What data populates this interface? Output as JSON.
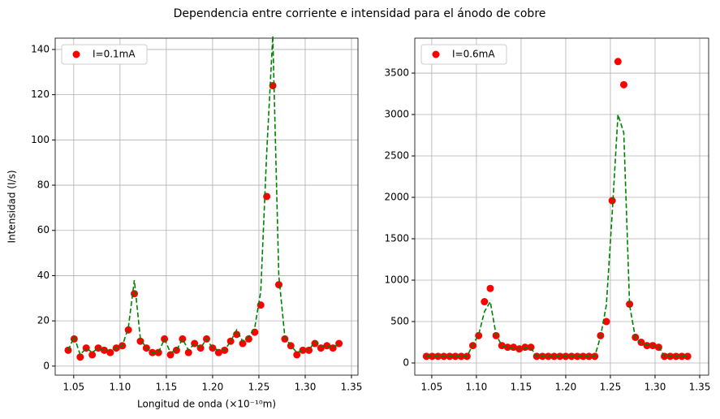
{
  "title": "Dependencia entre corriente e intensidad para el ánodo de cobre",
  "chart_data": [
    {
      "type": "scatter-line",
      "xlabel": "Longitud de onda (×10⁻¹⁰m)",
      "ylabel": "Intensidad (I/s)",
      "x": [
        1.044,
        1.0505,
        1.057,
        1.0635,
        1.07,
        1.0765,
        1.083,
        1.0895,
        1.096,
        1.1025,
        1.109,
        1.1155,
        1.122,
        1.1285,
        1.135,
        1.1415,
        1.148,
        1.1545,
        1.161,
        1.1675,
        1.174,
        1.1805,
        1.187,
        1.1935,
        1.2,
        1.2065,
        1.213,
        1.2195,
        1.226,
        1.2325,
        1.239,
        1.2455,
        1.252,
        1.2585,
        1.265,
        1.2715,
        1.278,
        1.2845,
        1.291,
        1.2975,
        1.304,
        1.3105,
        1.317,
        1.3235,
        1.33,
        1.3365
      ],
      "series": [
        {
          "name": "I=0.1mA",
          "color": "#ff0000",
          "style": "points",
          "values": [
            7,
            12,
            4,
            8,
            5,
            8,
            7,
            6,
            8,
            9,
            16,
            32,
            11,
            8,
            6,
            6,
            12,
            5,
            7,
            12,
            6,
            10,
            8,
            12,
            8,
            6,
            7,
            11,
            14,
            10,
            12,
            15,
            27,
            75,
            124,
            36,
            12,
            9,
            5,
            7,
            7,
            10,
            8,
            9,
            8,
            10
          ]
        },
        {
          "color": "#008000",
          "style": "dashed",
          "values": [
            7,
            13,
            5,
            8,
            6,
            8,
            7,
            7,
            8,
            9,
            17,
            38,
            12,
            8,
            6,
            6,
            12,
            6,
            7,
            12,
            7,
            10,
            8,
            12,
            8,
            7,
            7,
            11,
            16,
            11,
            13,
            17,
            33,
            95,
            146,
            40,
            13,
            9,
            6,
            7,
            7,
            11,
            9,
            9,
            8,
            10
          ]
        }
      ],
      "xlim": [
        1.03,
        1.357
      ],
      "ylim": [
        -4,
        145
      ],
      "xticks": [
        1.05,
        {
          "value": 1.1,
          "label": "1.10"
        },
        1.15,
        {
          "value": 1.2,
          "label": "1.20"
        },
        1.25,
        {
          "value": 1.3,
          "label": "1.30"
        },
        1.35
      ],
      "yticks": [
        0,
        20,
        40,
        60,
        80,
        100,
        120,
        140
      ],
      "grid": true,
      "legend": "upper left"
    },
    {
      "type": "scatter-line",
      "x": [
        1.044,
        1.0505,
        1.057,
        1.0635,
        1.07,
        1.0765,
        1.083,
        1.0895,
        1.096,
        1.1025,
        1.109,
        1.1155,
        1.122,
        1.1285,
        1.135,
        1.1415,
        1.148,
        1.1545,
        1.161,
        1.1675,
        1.174,
        1.1805,
        1.187,
        1.1935,
        1.2,
        1.2065,
        1.213,
        1.2195,
        1.226,
        1.2325,
        1.239,
        1.2455,
        1.252,
        1.2585,
        1.265,
        1.2715,
        1.278,
        1.2845,
        1.291,
        1.2975,
        1.304,
        1.3105,
        1.317,
        1.3235,
        1.33,
        1.3365
      ],
      "series": [
        {
          "name": "I=0.6mA",
          "color": "#ff0000",
          "style": "points",
          "values": [
            80,
            80,
            80,
            80,
            80,
            80,
            80,
            80,
            210,
            330,
            740,
            900,
            330,
            210,
            190,
            190,
            170,
            190,
            190,
            80,
            80,
            80,
            80,
            80,
            80,
            80,
            80,
            80,
            80,
            80,
            330,
            500,
            1960,
            3640,
            3360,
            710,
            310,
            250,
            210,
            210,
            190,
            80,
            80,
            80,
            80,
            80
          ]
        },
        {
          "color": "#008000",
          "style": "dashed",
          "values": [
            80,
            80,
            80,
            80,
            80,
            80,
            80,
            80,
            220,
            340,
            620,
            740,
            340,
            210,
            190,
            180,
            170,
            180,
            180,
            80,
            80,
            80,
            80,
            80,
            80,
            80,
            80,
            80,
            80,
            80,
            320,
            700,
            1800,
            3000,
            2780,
            700,
            300,
            240,
            220,
            210,
            200,
            80,
            80,
            80,
            80,
            80
          ]
        }
      ],
      "xlim": [
        1.031,
        1.36
      ],
      "ylim": [
        -147,
        3922
      ],
      "xticks": [
        1.05,
        {
          "value": 1.1,
          "label": "1.10"
        },
        1.15,
        {
          "value": 1.2,
          "label": "1.20"
        },
        1.25,
        {
          "value": 1.3,
          "label": "1.30"
        },
        1.35
      ],
      "yticks": [
        0,
        500,
        1000,
        1500,
        2000,
        2500,
        3000,
        3500
      ],
      "grid": true,
      "legend": "upper left"
    }
  ]
}
